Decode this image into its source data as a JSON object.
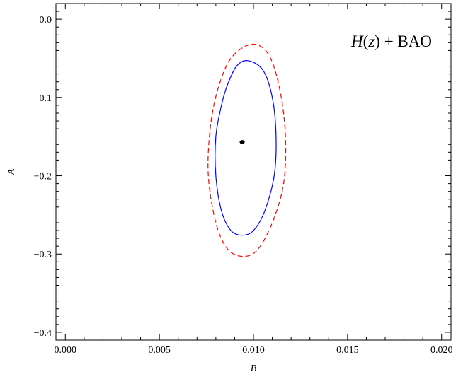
{
  "chart_data": {
    "type": "contour",
    "title": "",
    "xlabel": "B",
    "ylabel": "A",
    "xlim": [
      -0.0005,
      0.0205
    ],
    "ylim": [
      -0.41,
      0.02
    ],
    "x_ticks": [
      0.0,
      0.005,
      0.01,
      0.015,
      0.02
    ],
    "x_tick_labels": [
      "0.000",
      "0.005",
      "0.010",
      "0.015",
      "0.020"
    ],
    "y_ticks": [
      0.0,
      -0.1,
      -0.2,
      -0.3,
      -0.4
    ],
    "y_tick_labels": [
      "0.0",
      "−0.1",
      "−0.2",
      "−0.3",
      "−0.4"
    ],
    "grid": false,
    "annotation": {
      "italic": "H",
      "paren_open": "(",
      "italic_var": "z",
      "paren_close": ")",
      "rest": " + BAO"
    },
    "best_fit": {
      "x": 0.0094,
      "y": -0.157
    },
    "contours": [
      {
        "level": "1-sigma",
        "color": "#0000ff",
        "style": "solid",
        "points": [
          [
            0.0097,
            -0.053
          ],
          [
            0.0105,
            -0.065
          ],
          [
            0.011,
            -0.1
          ],
          [
            0.0112,
            -0.15
          ],
          [
            0.0111,
            -0.2
          ],
          [
            0.0106,
            -0.245
          ],
          [
            0.01,
            -0.27
          ],
          [
            0.0094,
            -0.276
          ],
          [
            0.0088,
            -0.27
          ],
          [
            0.0083,
            -0.245
          ],
          [
            0.008,
            -0.2
          ],
          [
            0.008,
            -0.15
          ],
          [
            0.0083,
            -0.11
          ],
          [
            0.0086,
            -0.085
          ],
          [
            0.0091,
            -0.06
          ]
        ]
      },
      {
        "level": "2-sigma",
        "color": "#ff0000",
        "style": "dashed",
        "points": [
          [
            0.0099,
            -0.032
          ],
          [
            0.0108,
            -0.045
          ],
          [
            0.0114,
            -0.09
          ],
          [
            0.0117,
            -0.15
          ],
          [
            0.0116,
            -0.21
          ],
          [
            0.011,
            -0.26
          ],
          [
            0.0102,
            -0.295
          ],
          [
            0.0094,
            -0.303
          ],
          [
            0.0086,
            -0.293
          ],
          [
            0.008,
            -0.26
          ],
          [
            0.0076,
            -0.2
          ],
          [
            0.0077,
            -0.14
          ],
          [
            0.0081,
            -0.09
          ],
          [
            0.0088,
            -0.05
          ]
        ]
      }
    ]
  }
}
